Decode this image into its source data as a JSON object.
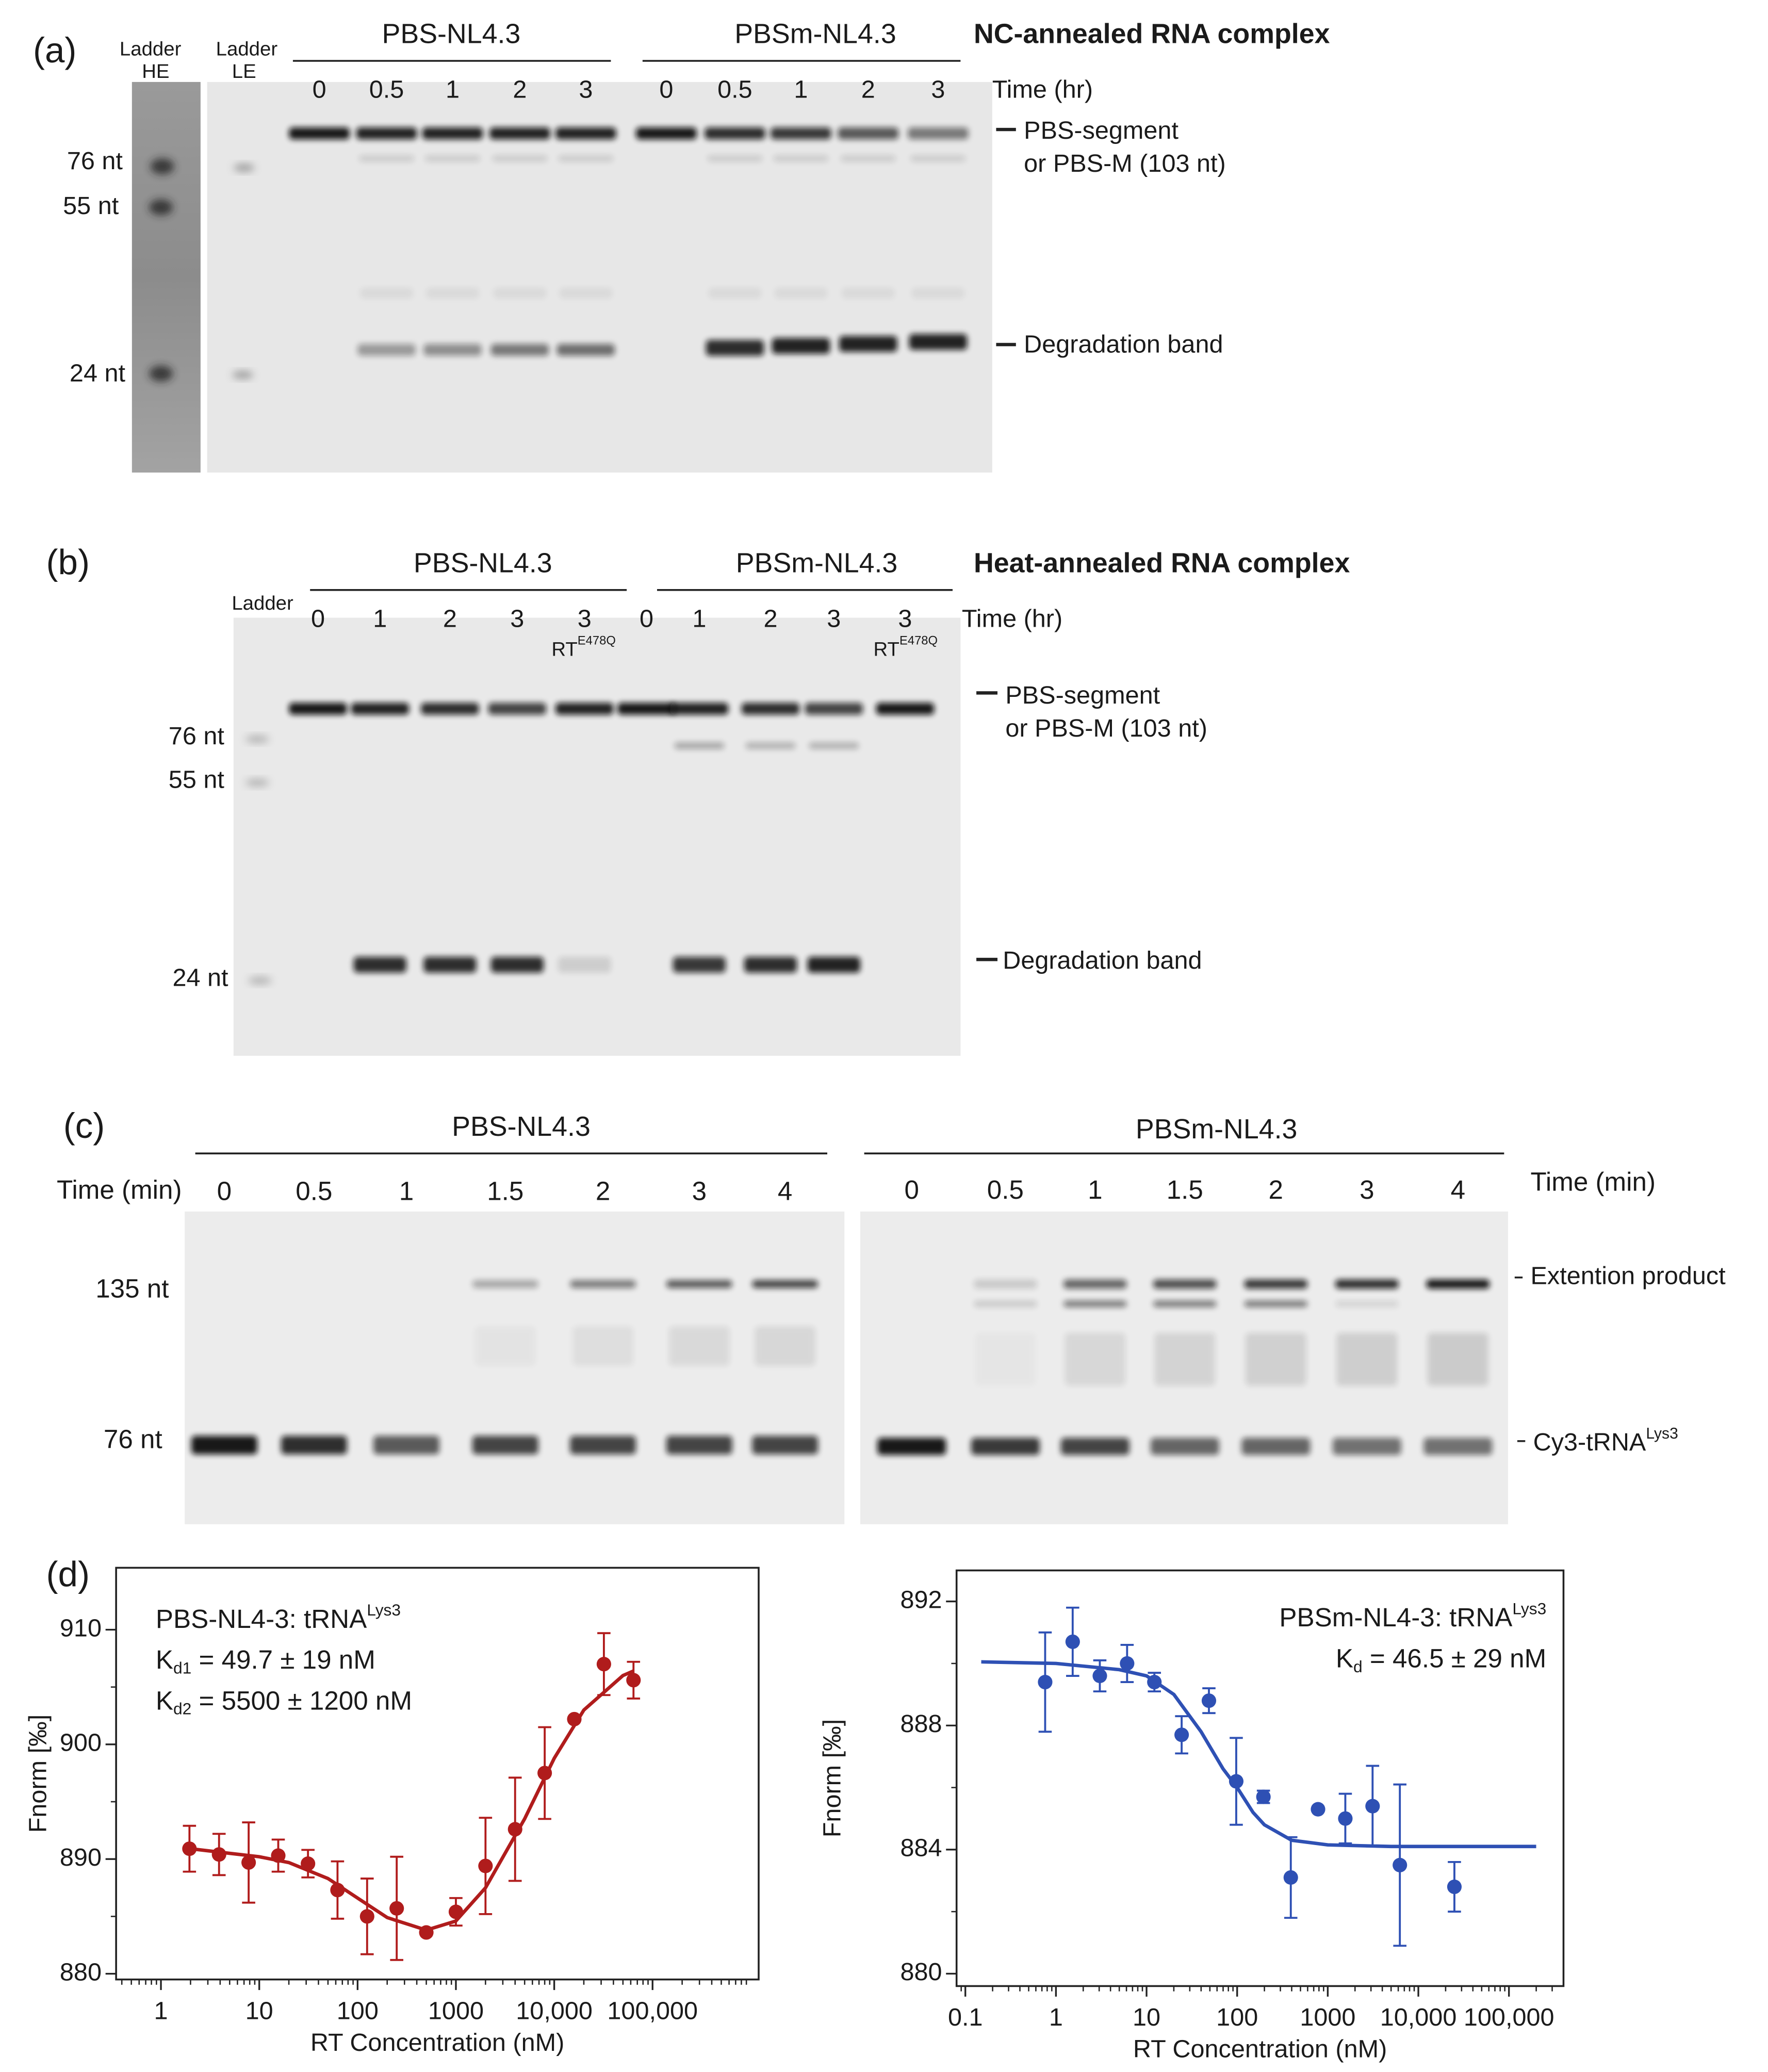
{
  "panels": {
    "a": {
      "label": "(a)",
      "ladder_he": [
        "Ladder",
        "HE"
      ],
      "ladder_le": [
        "Ladder",
        "LE"
      ],
      "groups": [
        "PBS-NL4.3",
        "PBSm-NL4.3"
      ],
      "heading": "NC-annealed RNA complex",
      "lanes": [
        "0",
        "0.5",
        "1",
        "2",
        "3",
        "0",
        "0.5",
        "1",
        "2",
        "3"
      ],
      "time_label": "Time (hr)",
      "markers": [
        "76 nt",
        "55 nt",
        "24 nt"
      ],
      "band_labels": [
        "PBS-segment",
        "or PBS-M (103 nt)",
        "Degradation band"
      ]
    },
    "b": {
      "label": "(b)",
      "ladder": "Ladder",
      "groups": [
        "PBS-NL4.3",
        "PBSm-NL4.3"
      ],
      "heading": "Heat-annealed RNA complex",
      "lanes": [
        "0",
        "1",
        "2",
        "3",
        "3",
        "0",
        "1",
        "2",
        "3",
        "3"
      ],
      "time_label": "Time (hr)",
      "rt_labels": [
        [
          "RT",
          "E478Q"
        ],
        [
          "RT",
          "E478Q"
        ]
      ],
      "markers": [
        "76 nt",
        "55 nt",
        "24 nt"
      ],
      "band_labels": [
        "PBS-segment",
        "or PBS-M (103 nt)",
        "Degradation band"
      ]
    },
    "c": {
      "label": "(c)",
      "groups": [
        "PBS-NL4.3",
        "PBSm-NL4.3"
      ],
      "time_labels": [
        "Time (min)",
        "Time (min)"
      ],
      "lanes_left": [
        "0",
        "0.5",
        "1",
        "1.5",
        "2",
        "3",
        "4"
      ],
      "lanes_right": [
        "0",
        "0.5",
        "1",
        "1.5",
        "2",
        "3",
        "4"
      ],
      "markers": [
        "135 nt",
        "76 nt"
      ],
      "product_label": "Extention product",
      "trna_label": [
        "Cy3-tRNA",
        "Lys3"
      ]
    },
    "d": {
      "label": "(d)"
    }
  },
  "chart_data": [
    {
      "type": "scatter",
      "annotation": [
        [
          "PBS-NL4-3: tRNA",
          "Lys3"
        ],
        [
          "K",
          "d1",
          " = 49.7 ± 19 nM"
        ],
        [
          "K",
          "d2",
          " = 5500 ± 1200 nM"
        ]
      ],
      "x_label": "RT Concentration (nM)",
      "y_label": "Fnorm [‰]",
      "xscale": "log",
      "xlim": [
        0.35,
        1200000
      ],
      "ylim": [
        879.5,
        915.4
      ],
      "xticks": [
        1,
        10,
        100,
        1000,
        {
          "value": 10000,
          "label": "10,000"
        },
        {
          "value": 100000,
          "label": "100,000"
        }
      ],
      "yticks": [
        880,
        890,
        900,
        910
      ],
      "color": "#b01c1c",
      "x": [
        1.95,
        3.9,
        7.8,
        15.6,
        31.3,
        62.5,
        125,
        250,
        500,
        1000,
        2000,
        4000,
        8000,
        16000,
        32000,
        64000
      ],
      "values": [
        890.9,
        890.4,
        889.7,
        890.3,
        889.6,
        887.3,
        885.0,
        885.7,
        883.6,
        885.4,
        889.4,
        892.6,
        897.5,
        902.2,
        907.0,
        905.6
      ],
      "errors": [
        2.0,
        1.8,
        3.5,
        1.4,
        1.2,
        2.5,
        3.3,
        4.5,
        0,
        1.2,
        4.2,
        4.5,
        4.0,
        0,
        2.7,
        1.6
      ],
      "fit": {
        "x": [
          2,
          5,
          10,
          20,
          50,
          100,
          200,
          500,
          1000,
          2000,
          5000,
          10000,
          20000,
          50000,
          64000
        ],
        "values": [
          890.9,
          890.5,
          890.2,
          889.7,
          888.3,
          886.6,
          884.9,
          883.8,
          884.6,
          887.5,
          893.5,
          898.8,
          903.0,
          906.0,
          906.4
        ]
      }
    },
    {
      "type": "scatter",
      "annotation": [
        [
          "PBSm-NL4-3: tRNA",
          "Lys3"
        ],
        [
          "K",
          "d",
          " = 46.5 ± 29 nM"
        ]
      ],
      "x_label": "RT Concentration (nM)",
      "y_label": "Fnorm [‰]",
      "xscale": "log",
      "xlim": [
        0.08,
        400000
      ],
      "ylim": [
        879.6,
        893
      ],
      "xticks": [
        0.1,
        1,
        10,
        100,
        1000,
        {
          "value": 10000,
          "label": "10,000"
        },
        {
          "value": 100000,
          "label": "100,000"
        }
      ],
      "yticks": [
        880,
        884,
        888,
        892
      ],
      "color": "#2e50b4",
      "x": [
        0.76,
        1.53,
        3.05,
        6.1,
        12.2,
        24.4,
        48.8,
        97.7,
        195,
        391,
        781,
        1563,
        3125,
        6250,
        25000
      ],
      "values": [
        889.4,
        890.7,
        889.6,
        890.0,
        889.4,
        887.7,
        888.8,
        886.2,
        885.7,
        883.1,
        885.3,
        885.0,
        885.4,
        883.5,
        882.8
      ],
      "errors": [
        1.6,
        1.1,
        0.5,
        0.6,
        0.3,
        0.6,
        0.4,
        1.4,
        0.2,
        1.3,
        0,
        0.8,
        1.3,
        2.6,
        0.8
      ],
      "fit": {
        "x": [
          0.15,
          1,
          5,
          10,
          20,
          40,
          70,
          100,
          150,
          200,
          400,
          1000,
          5000,
          200000
        ],
        "values": [
          890.05,
          890.0,
          889.8,
          889.6,
          889.0,
          887.8,
          886.6,
          886.0,
          885.2,
          884.8,
          884.3,
          884.15,
          884.1,
          884.1
        ]
      }
    }
  ]
}
